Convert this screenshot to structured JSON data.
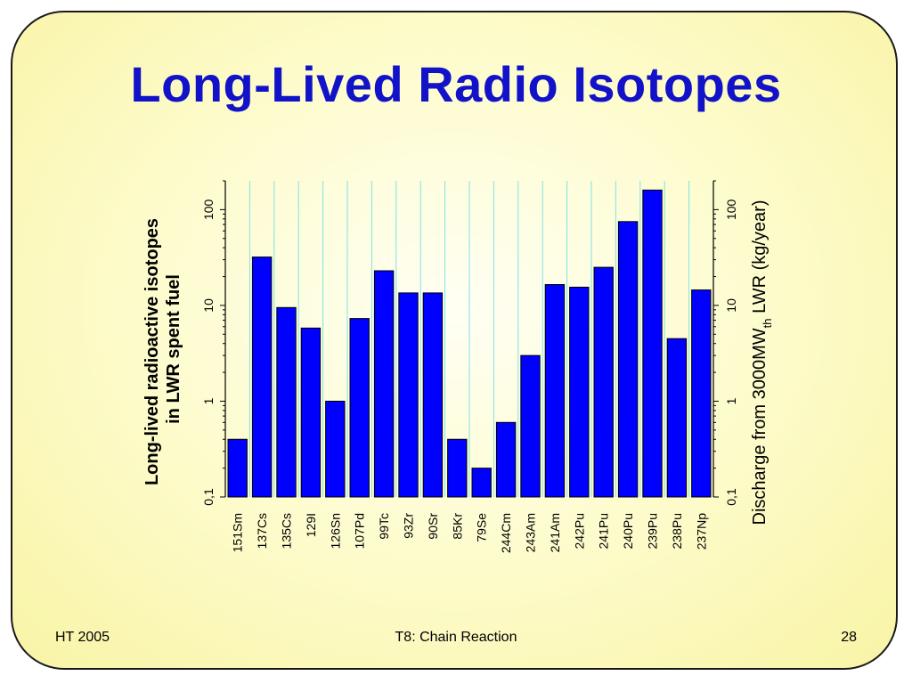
{
  "slide": {
    "title": "Long-Lived Radio Isotopes",
    "footer_left": "HT 2005",
    "footer_center": "T8: Chain Reaction",
    "footer_right": "28"
  },
  "colors": {
    "bar": "#0000ff",
    "bar_border": "#000000",
    "divider": "#7ee3e3",
    "title": "#1212c8"
  },
  "chart_data": {
    "type": "bar",
    "scale": "log",
    "ylim": [
      0.1,
      200
    ],
    "yticks": [
      {
        "value": 0.1,
        "label": "0,1"
      },
      {
        "value": 1,
        "label": "1"
      },
      {
        "value": 10,
        "label": "10"
      },
      {
        "value": 100,
        "label": "100"
      }
    ],
    "categories": [
      "151Sm",
      "137Cs",
      "135Cs",
      "129I",
      "126Sn",
      "107Pd",
      "99Tc",
      "93Zr",
      "90Sr",
      "85Kr",
      "79Se",
      "244Cm",
      "243Am",
      "241Am",
      "242Pu",
      "241Pu",
      "240Pu",
      "239Pu",
      "238Pu",
      "237Np"
    ],
    "values": [
      0.4,
      32,
      9.5,
      5.8,
      1.0,
      7.3,
      23,
      13.5,
      13.5,
      0.4,
      0.2,
      0.6,
      3.0,
      16.5,
      15.5,
      25,
      75,
      160,
      4.5,
      14.5
    ],
    "ylabel_left_line1": "Long-lived radioactive isotopes",
    "ylabel_left_line2": "in LWR spent fuel",
    "ylabel_right_main": "Discharge from 3000MW",
    "ylabel_right_sub": "th",
    "ylabel_right_tail": " LWR (kg/year)",
    "grid": "vertical divider lines between categories"
  }
}
